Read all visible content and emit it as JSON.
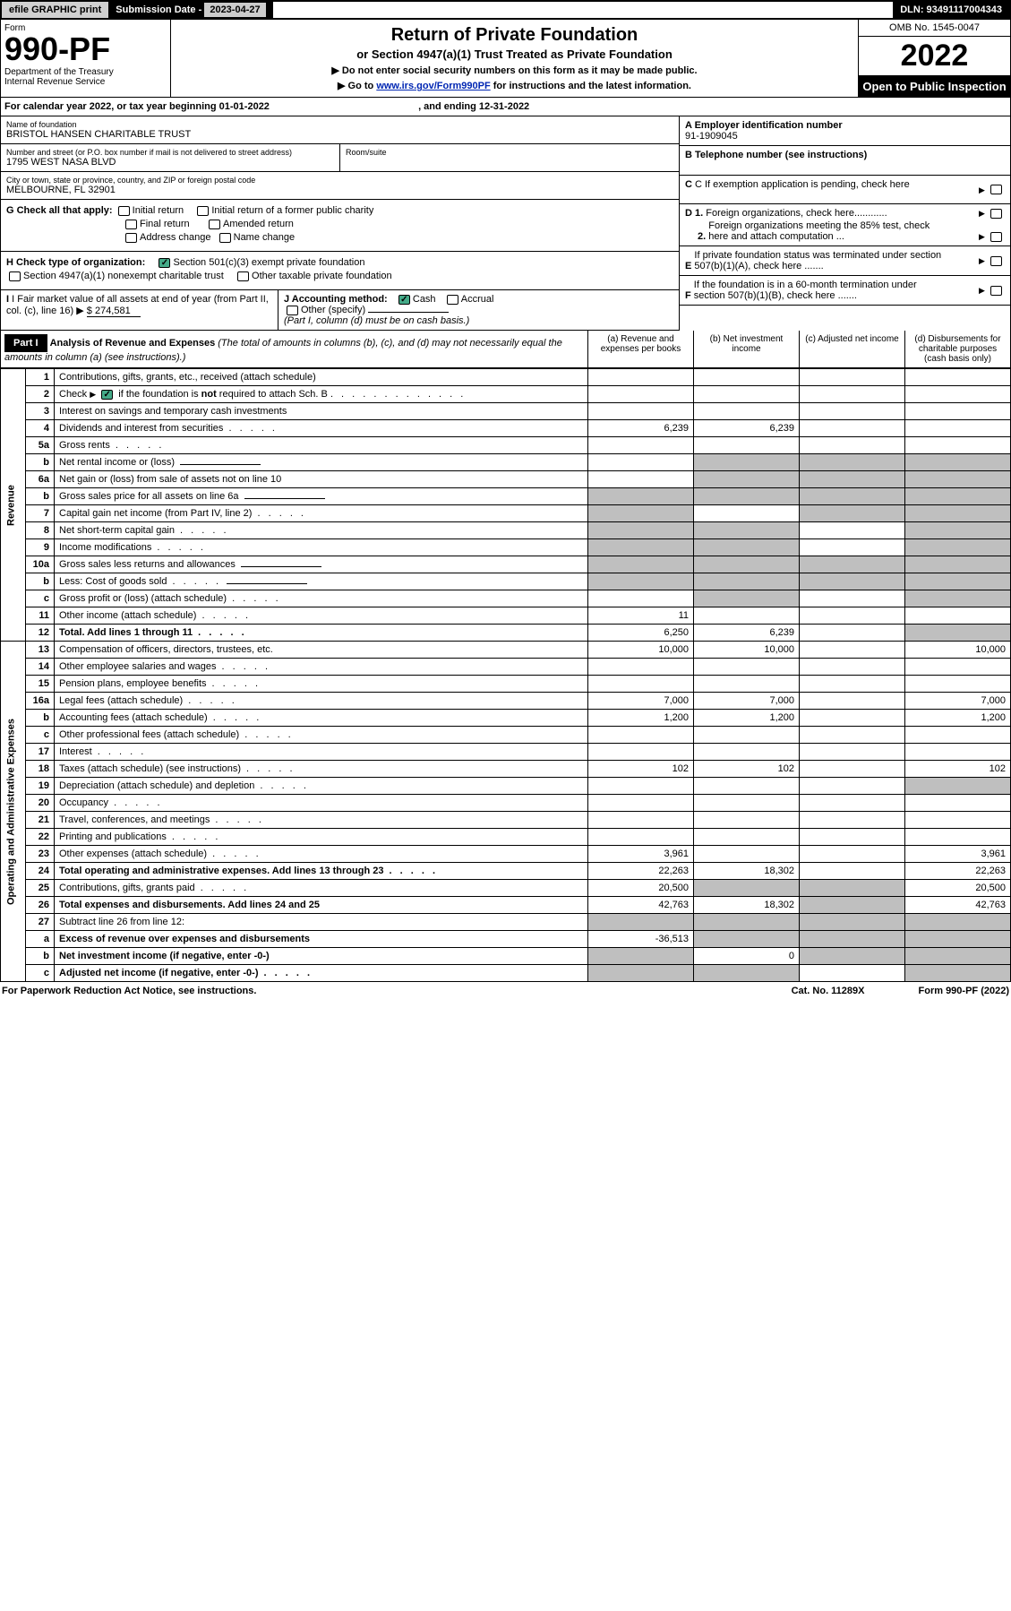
{
  "topbar": {
    "efile": "efile GRAPHIC print",
    "sub_label": "Submission Date - ",
    "sub_date": "2023-04-27",
    "dln": "DLN: 93491117004343"
  },
  "header": {
    "form_label": "Form",
    "form_no": "990-PF",
    "dept": "Department of the Treasury\nInternal Revenue Service",
    "title": "Return of Private Foundation",
    "subtitle": "or Section 4947(a)(1) Trust Treated as Private Foundation",
    "note1": "▶ Do not enter social security numbers on this form as it may be made public.",
    "note2_prefix": "▶ Go to ",
    "note2_link": "www.irs.gov/Form990PF",
    "note2_suffix": " for instructions and the latest information.",
    "omb": "OMB No. 1545-0047",
    "year": "2022",
    "open": "Open to Public Inspection"
  },
  "calendar": {
    "text_a": "For calendar year 2022, or tax year beginning ",
    "begin": "01-01-2022",
    "text_b": ", and ending ",
    "end": "12-31-2022"
  },
  "entity": {
    "name_label": "Name of foundation",
    "name": "BRISTOL HANSEN CHARITABLE TRUST",
    "addr_label": "Number and street (or P.O. box number if mail is not delivered to street address)",
    "addr": "1795 WEST NASA BLVD",
    "room_label": "Room/suite",
    "city_label": "City or town, state or province, country, and ZIP or foreign postal code",
    "city": "MELBOURNE, FL  32901",
    "ein_label": "A Employer identification number",
    "ein": "91-1909045",
    "phone_label": "B Telephone number (see instructions)",
    "c_label": "C If exemption application is pending, check here",
    "d1_label": "D 1. Foreign organizations, check here............",
    "d2_label": "2. Foreign organizations meeting the 85% test, check here and attach computation ...",
    "e_label": "E  If private foundation status was terminated under section 507(b)(1)(A), check here .......",
    "f_label": "F  If the foundation is in a 60-month termination under section 507(b)(1)(B), check here .......",
    "g_label": "G Check all that apply:",
    "g_opts": [
      "Initial return",
      "Initial return of a former public charity",
      "Final return",
      "Amended return",
      "Address change",
      "Name change"
    ],
    "h_label": "H Check type of organization:",
    "h1": "Section 501(c)(3) exempt private foundation",
    "h2": "Section 4947(a)(1) nonexempt charitable trust",
    "h3": "Other taxable private foundation",
    "i_label": "I Fair market value of all assets at end of year (from Part II, col. (c), line 16) ▶",
    "i_val": "$  274,581",
    "j_label": "J Accounting method:",
    "j_cash": "Cash",
    "j_accrual": "Accrual",
    "j_other": "Other (specify)",
    "j_note": "(Part I, column (d) must be on cash basis.)"
  },
  "part1": {
    "label": "Part I",
    "title": "Analysis of Revenue and Expenses ",
    "title_note": "(The total of amounts in columns (b), (c), and (d) may not necessarily equal the amounts in column (a) (see instructions).)",
    "col_a": "(a)   Revenue and expenses per books",
    "col_b": "(b)   Net investment income",
    "col_c": "(c)   Adjusted net income",
    "col_d": "(d)   Disbursements for charitable purposes (cash basis only)"
  },
  "side": {
    "rev": "Revenue",
    "exp": "Operating and Administrative Expenses"
  },
  "rows": [
    {
      "n": "1",
      "d": "Contributions, gifts, grants, etc., received (attach schedule)"
    },
    {
      "n": "2",
      "d": "Check ▶ ☑ if the foundation is not required to attach Sch. B",
      "dots": true
    },
    {
      "n": "3",
      "d": "Interest on savings and temporary cash investments"
    },
    {
      "n": "4",
      "d": "Dividends and interest from securities",
      "a": "6,239",
      "b": "6,239",
      "dots": true
    },
    {
      "n": "5a",
      "d": "Gross rents",
      "dots": true
    },
    {
      "n": "b",
      "d": "Net rental income or (loss)",
      "field": true,
      "shade_bcd": true
    },
    {
      "n": "6a",
      "d": "Net gain or (loss) from sale of assets not on line 10",
      "shade_bcd": true
    },
    {
      "n": "b",
      "d": "Gross sales price for all assets on line 6a",
      "field": true,
      "shade_all": true
    },
    {
      "n": "7",
      "d": "Capital gain net income (from Part IV, line 2)",
      "shade_a": true,
      "shade_cd": true,
      "dots": true
    },
    {
      "n": "8",
      "d": "Net short-term capital gain",
      "shade_ab": true,
      "shade_d": true,
      "dots": true
    },
    {
      "n": "9",
      "d": "Income modifications",
      "shade_ab": true,
      "shade_d": true,
      "dots": true
    },
    {
      "n": "10a",
      "d": "Gross sales less returns and allowances",
      "field": true,
      "shade_all": true
    },
    {
      "n": "b",
      "d": "Less: Cost of goods sold",
      "field": true,
      "shade_all": true,
      "dots": true
    },
    {
      "n": "c",
      "d": "Gross profit or (loss) (attach schedule)",
      "shade_b": true,
      "shade_d": true,
      "dots": true
    },
    {
      "n": "11",
      "d": "Other income (attach schedule)",
      "a": "11",
      "dots": true
    },
    {
      "n": "12",
      "d": "Total. Add lines 1 through 11",
      "a": "6,250",
      "b": "6,239",
      "shade_d": true,
      "bold": true,
      "dots": true
    }
  ],
  "exp_rows": [
    {
      "n": "13",
      "d": "Compensation of officers, directors, trustees, etc.",
      "a": "10,000",
      "b": "10,000",
      "dd": "10,000"
    },
    {
      "n": "14",
      "d": "Other employee salaries and wages",
      "dots": true
    },
    {
      "n": "15",
      "d": "Pension plans, employee benefits",
      "dots": true
    },
    {
      "n": "16a",
      "d": "Legal fees (attach schedule)",
      "a": "7,000",
      "b": "7,000",
      "dd": "7,000",
      "dots": true
    },
    {
      "n": "b",
      "d": "Accounting fees (attach schedule)",
      "a": "1,200",
      "b": "1,200",
      "dd": "1,200",
      "dots": true
    },
    {
      "n": "c",
      "d": "Other professional fees (attach schedule)",
      "dots": true
    },
    {
      "n": "17",
      "d": "Interest",
      "dots": true
    },
    {
      "n": "18",
      "d": "Taxes (attach schedule) (see instructions)",
      "a": "102",
      "b": "102",
      "dd": "102",
      "dots": true
    },
    {
      "n": "19",
      "d": "Depreciation (attach schedule) and depletion",
      "shade_d": true,
      "dots": true
    },
    {
      "n": "20",
      "d": "Occupancy",
      "dots": true
    },
    {
      "n": "21",
      "d": "Travel, conferences, and meetings",
      "dots": true
    },
    {
      "n": "22",
      "d": "Printing and publications",
      "dots": true
    },
    {
      "n": "23",
      "d": "Other expenses (attach schedule)",
      "a": "3,961",
      "dd": "3,961",
      "dots": true
    },
    {
      "n": "24",
      "d": "Total operating and administrative expenses. Add lines 13 through 23",
      "a": "22,263",
      "b": "18,302",
      "dd": "22,263",
      "bold": true,
      "dots": true
    },
    {
      "n": "25",
      "d": "Contributions, gifts, grants paid",
      "a": "20,500",
      "dd": "20,500",
      "shade_b": true,
      "shade_c": true,
      "dots": true
    },
    {
      "n": "26",
      "d": "Total expenses and disbursements. Add lines 24 and 25",
      "a": "42,763",
      "b": "18,302",
      "dd": "42,763",
      "bold": true,
      "shade_c": true
    },
    {
      "n": "27",
      "d": "Subtract line 26 from line 12:",
      "shade_all": true
    },
    {
      "n": "a",
      "d": "Excess of revenue over expenses and disbursements",
      "a": "-36,513",
      "bold": true,
      "shade_bcd": true
    },
    {
      "n": "b",
      "d": "Net investment income (if negative, enter -0-)",
      "b": "0",
      "bold": true,
      "shade_a": true,
      "shade_cd": true
    },
    {
      "n": "c",
      "d": "Adjusted net income (if negative, enter -0-)",
      "bold": true,
      "shade_ab": true,
      "shade_d": true,
      "dots": true
    }
  ],
  "footer": {
    "left": "For Paperwork Reduction Act Notice, see instructions.",
    "mid": "Cat. No. 11289X",
    "right": "Form 990-PF (2022)"
  }
}
